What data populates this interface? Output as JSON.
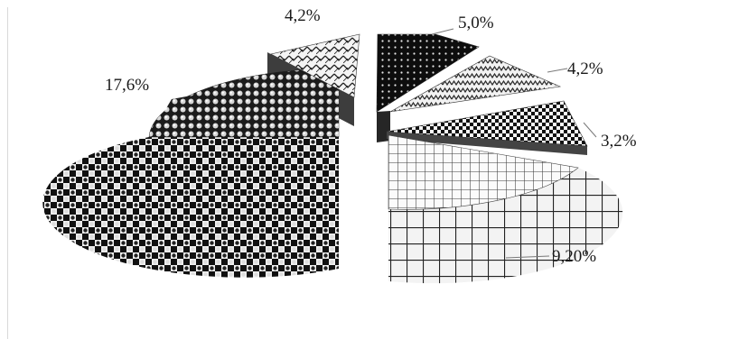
{
  "chart_data": {
    "type": "pie",
    "style": "exploded 3D pie with patterned slices, no legend, no title",
    "title": "",
    "slices": [
      {
        "label": "5,0%",
        "value": 5.0,
        "pattern": "black-dots"
      },
      {
        "label": "4,2%",
        "value": 4.2,
        "pattern": "zigzag"
      },
      {
        "label": "3,2%",
        "value": 3.2,
        "pattern": "checker"
      },
      {
        "label": "9,20%",
        "value": 9.2,
        "pattern": "grid"
      },
      {
        "label": "17,6%",
        "value": 17.6,
        "pattern": "dots-checker"
      },
      {
        "label": "4,2%",
        "value": 4.2,
        "pattern": "weave"
      }
    ],
    "colors": {
      "dark": "#111111",
      "light": "#f4f4f4",
      "mid": "#8c8c8c"
    },
    "legend": "none",
    "grid": false
  }
}
